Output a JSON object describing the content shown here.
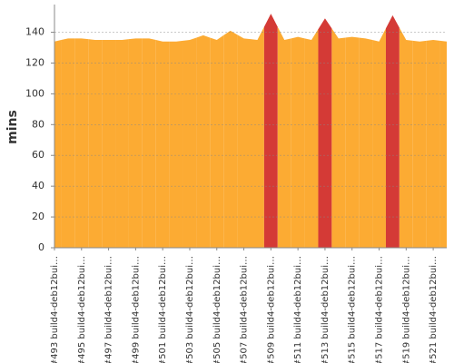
{
  "chart_data": {
    "type": "area",
    "y_label": "mins",
    "categories": [
      "#493 build4-deb12bui…",
      null,
      "#495 build4-deb12bui…",
      null,
      "#497 build4-deb12bui…",
      null,
      "#499 build4-deb12bui…",
      null,
      "#501 build4-deb12bui…",
      null,
      "#503 build4-deb12bui…",
      null,
      "#505 build4-deb12bui…",
      null,
      "#507 build4-deb12bui…",
      null,
      "#509 build4-deb12bui…",
      null,
      "#511 build4-deb12bui…",
      null,
      "#513 build4-deb12bui…",
      null,
      "#515 build4-deb12bui…",
      null,
      "#517 build4-deb12bui…",
      null,
      "#519 build4-deb12bui…",
      null,
      "#521 build4-deb12bui…",
      null
    ],
    "values": [
      134,
      136,
      136,
      135,
      135,
      135,
      136,
      136,
      134,
      134,
      135,
      138,
      135,
      141,
      136,
      135,
      152,
      135,
      137,
      135,
      149,
      136,
      137,
      136,
      134,
      151,
      135,
      134,
      135,
      134
    ],
    "colors": [
      "#fcab33",
      "#fcab33",
      "#fcab33",
      "#fcab33",
      "#fcab33",
      "#fcab33",
      "#fcab33",
      "#fcab33",
      "#fcab33",
      "#fcab33",
      "#fcab33",
      "#fcab33",
      "#fcab33",
      "#fcab33",
      "#fcab33",
      "#fcab33",
      "#d43a36",
      "#fcab33",
      "#fcab33",
      "#fcab33",
      "#d43a36",
      "#fcab33",
      "#fcab33",
      "#fcab33",
      "#fcab33",
      "#d43a36",
      "#fcab33",
      "#fcab33",
      "#fcab33",
      "#fcab33"
    ],
    "ylim": [
      0,
      158
    ],
    "yticks": [
      0,
      20,
      40,
      60,
      80,
      100,
      120,
      140
    ],
    "grid": true
  }
}
